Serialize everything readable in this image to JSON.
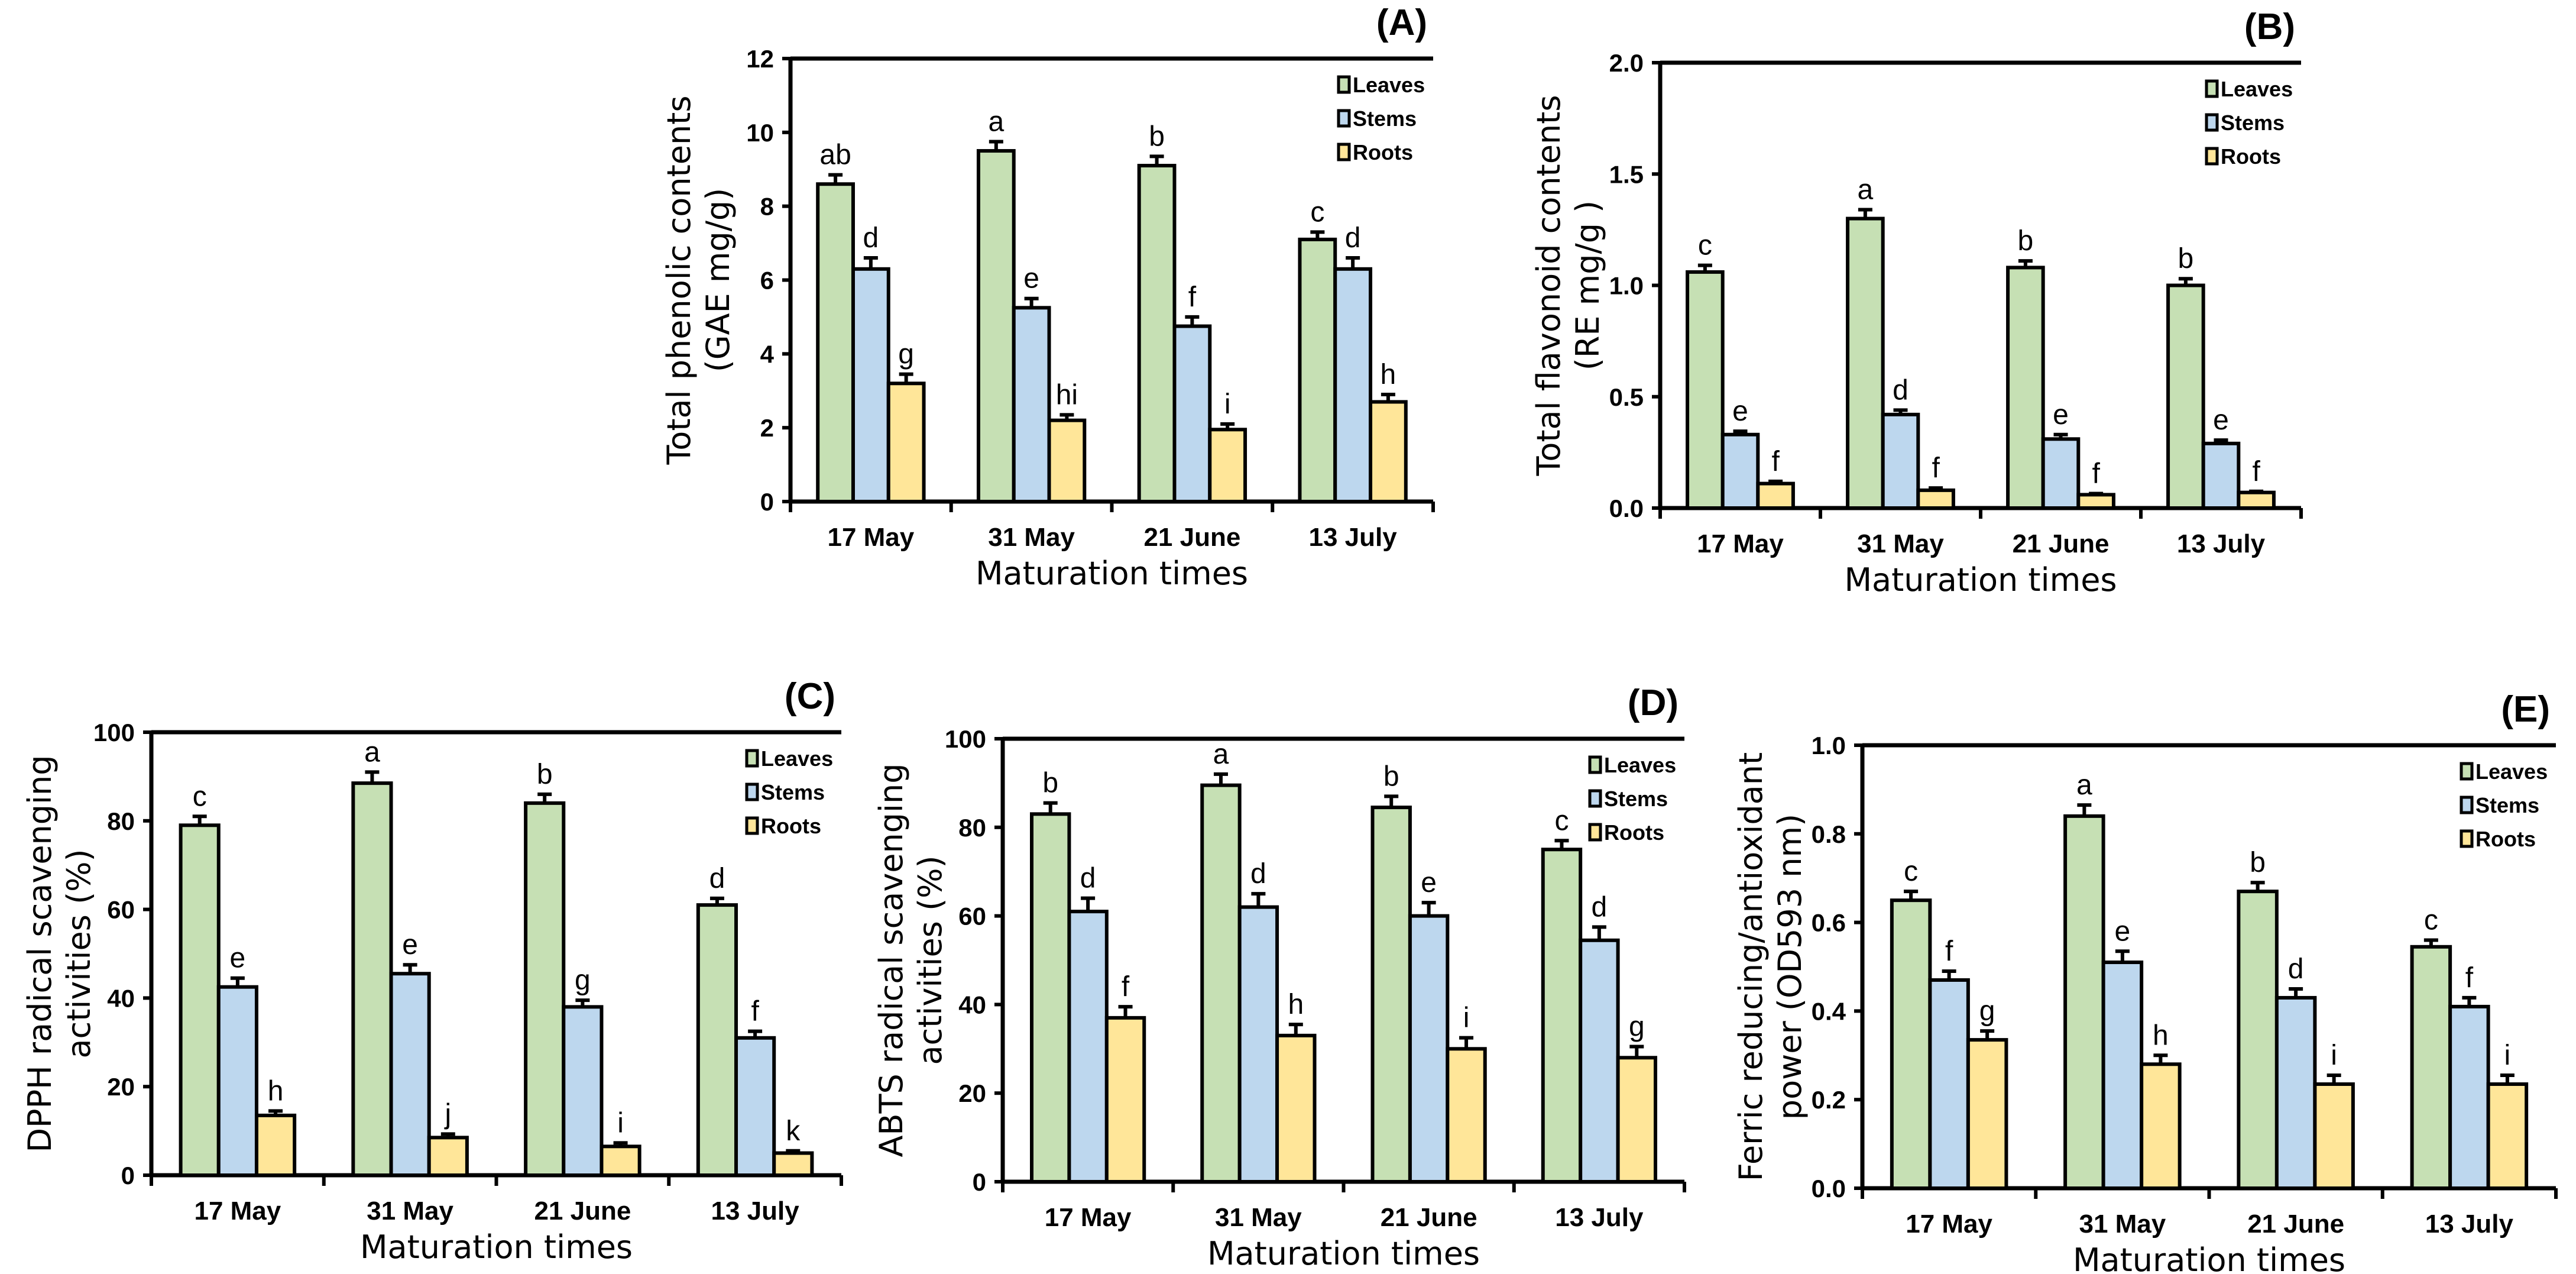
{
  "chart_data": [
    {
      "type": "bar",
      "panel": "(A)",
      "categories": [
        "17 May",
        "31 May",
        "21 June",
        "13 July"
      ],
      "xlabel": "Maturation times",
      "ylabel": [
        "Total phenolic contents",
        "(GAE mg/g)"
      ],
      "ylim": [
        0,
        12
      ],
      "yticks": [
        "0",
        "2",
        "4",
        "6",
        "8",
        "10",
        "12"
      ],
      "ystep": 2,
      "legend": "top-right",
      "series": [
        {
          "name": "Leaves",
          "color": "#c6e0b4",
          "values": [
            8.6,
            9.5,
            9.1,
            7.1
          ],
          "errors": [
            0.25,
            0.25,
            0.25,
            0.2
          ],
          "letters": [
            "ab",
            "a",
            "b",
            "c"
          ]
        },
        {
          "name": "Stems",
          "color": "#bdd7ee",
          "values": [
            6.3,
            5.25,
            4.75,
            6.3
          ],
          "errors": [
            0.3,
            0.25,
            0.25,
            0.3
          ],
          "letters": [
            "d",
            "e",
            "f",
            "d"
          ]
        },
        {
          "name": "Roots",
          "color": "#ffe699",
          "values": [
            3.2,
            2.2,
            1.95,
            2.7
          ],
          "errors": [
            0.25,
            0.15,
            0.15,
            0.2
          ],
          "letters": [
            "g",
            "hi",
            "i",
            "h"
          ]
        }
      ]
    },
    {
      "type": "bar",
      "panel": "(B)",
      "categories": [
        "17 May",
        "31 May",
        "21 June",
        "13 July"
      ],
      "xlabel": "Maturation times",
      "ylabel": [
        "Total flavonoid contents",
        "(RE mg/g )"
      ],
      "ylim": [
        0,
        2.0
      ],
      "yticks": [
        "0.0",
        "0.5",
        "1.0",
        "1.5",
        "2.0"
      ],
      "ystep": 0.5,
      "legend": "top-right",
      "series": [
        {
          "name": "Leaves",
          "color": "#c6e0b4",
          "values": [
            1.06,
            1.3,
            1.08,
            1.0
          ],
          "errors": [
            0.03,
            0.04,
            0.03,
            0.03
          ],
          "letters": [
            "c",
            "a",
            "b",
            "b"
          ]
        },
        {
          "name": "Stems",
          "color": "#bdd7ee",
          "values": [
            0.33,
            0.42,
            0.31,
            0.29
          ],
          "errors": [
            0.015,
            0.02,
            0.02,
            0.015
          ],
          "letters": [
            "e",
            "d",
            "e",
            "e"
          ]
        },
        {
          "name": "Roots",
          "color": "#ffe699",
          "values": [
            0.11,
            0.08,
            0.06,
            0.07
          ],
          "errors": [
            0.01,
            0.01,
            0.005,
            0.005
          ],
          "letters": [
            "f",
            "f",
            "f",
            "f"
          ]
        }
      ]
    },
    {
      "type": "bar",
      "panel": "(C)",
      "categories": [
        "17 May",
        "31 May",
        "21 June",
        "13 July"
      ],
      "xlabel": "Maturation times",
      "ylabel": [
        "DPPH radical scavenging",
        "activities (%)"
      ],
      "ylim": [
        0,
        100
      ],
      "yticks": [
        "0",
        "20",
        "40",
        "60",
        "80",
        "100"
      ],
      "ystep": 20,
      "legend": "top-right",
      "series": [
        {
          "name": "Leaves",
          "color": "#c6e0b4",
          "values": [
            79,
            88.5,
            84,
            61
          ],
          "errors": [
            2,
            2.5,
            2,
            1.5
          ],
          "letters": [
            "c",
            "a",
            "b",
            "d"
          ]
        },
        {
          "name": "Stems",
          "color": "#bdd7ee",
          "values": [
            42.5,
            45.5,
            38,
            31
          ],
          "errors": [
            2,
            2,
            1.5,
            1.5
          ],
          "letters": [
            "e",
            "e",
            "g",
            "f"
          ]
        },
        {
          "name": "Roots",
          "color": "#ffe699",
          "values": [
            13.5,
            8.5,
            6.5,
            5
          ],
          "errors": [
            1,
            0.8,
            0.8,
            0.5
          ],
          "letters": [
            "h",
            "j",
            "i",
            "k"
          ]
        }
      ]
    },
    {
      "type": "bar",
      "panel": "(D)",
      "categories": [
        "17 May",
        "31 May",
        "21 June",
        "13 July"
      ],
      "xlabel": "Maturation times",
      "ylabel": [
        "ABTS radical scavenging",
        "activities (%)"
      ],
      "ylim": [
        0,
        100
      ],
      "yticks": [
        "0",
        "20",
        "40",
        "60",
        "80",
        "100"
      ],
      "ystep": 20,
      "legend": "top-right",
      "series": [
        {
          "name": "Leaves",
          "color": "#c6e0b4",
          "values": [
            83,
            89.5,
            84.5,
            75
          ],
          "errors": [
            2.5,
            2.5,
            2.5,
            2
          ],
          "letters": [
            "b",
            "a",
            "b",
            "c"
          ]
        },
        {
          "name": "Stems",
          "color": "#bdd7ee",
          "values": [
            61,
            62,
            60,
            54.5
          ],
          "errors": [
            3,
            3,
            3,
            3
          ],
          "letters": [
            "d",
            "d",
            "e",
            "d"
          ]
        },
        {
          "name": "Roots",
          "color": "#ffe699",
          "values": [
            37,
            33,
            30,
            28
          ],
          "errors": [
            2.5,
            2.5,
            2.5,
            2.5
          ],
          "letters": [
            "f",
            "h",
            "i",
            "g"
          ]
        }
      ]
    },
    {
      "type": "bar",
      "panel": "(E)",
      "categories": [
        "17 May",
        "31 May",
        "21 June",
        "13 July"
      ],
      "xlabel": "Maturation times",
      "ylabel": [
        "Ferric reducing/antioxidant",
        "power (OD593 nm)"
      ],
      "ylim": [
        0,
        1.0
      ],
      "yticks": [
        "0.0",
        "0.2",
        "0.4",
        "0.6",
        "0.8",
        "1.0"
      ],
      "ystep": 0.2,
      "legend": "top-right",
      "series": [
        {
          "name": "Leaves",
          "color": "#c6e0b4",
          "values": [
            0.65,
            0.84,
            0.67,
            0.545
          ],
          "errors": [
            0.02,
            0.025,
            0.02,
            0.015
          ],
          "letters": [
            "c",
            "a",
            "b",
            "c"
          ]
        },
        {
          "name": "Stems",
          "color": "#bdd7ee",
          "values": [
            0.47,
            0.51,
            0.43,
            0.41
          ],
          "errors": [
            0.02,
            0.025,
            0.02,
            0.02
          ],
          "letters": [
            "f",
            "e",
            "d",
            "f"
          ]
        },
        {
          "name": "Roots",
          "color": "#ffe699",
          "values": [
            0.335,
            0.28,
            0.235,
            0.235
          ],
          "errors": [
            0.02,
            0.02,
            0.02,
            0.02
          ],
          "letters": [
            "g",
            "h",
            "i",
            "i"
          ]
        }
      ]
    }
  ]
}
